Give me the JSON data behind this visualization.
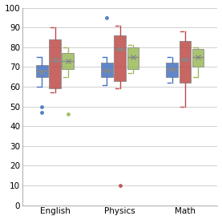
{
  "categories": [
    "English",
    "Physics",
    "Math"
  ],
  "colors": {
    "blue": "#4472C4",
    "red": "#BE4B48",
    "green": "#9BBB59"
  },
  "boxes": {
    "English": {
      "blue": {
        "q1": 65,
        "median": 68,
        "q3": 71,
        "mean": 67.5,
        "whislo": 60,
        "whishi": 75,
        "fliers": [
          50,
          47
        ]
      },
      "red": {
        "q1": 59,
        "median": 73,
        "q3": 84,
        "mean": 74,
        "whislo": 57,
        "whishi": 90,
        "fliers": []
      },
      "green": {
        "q1": 69,
        "median": 73,
        "q3": 77,
        "mean": 73,
        "whislo": 65,
        "whishi": 80,
        "fliers": [
          46
        ]
      }
    },
    "Physics": {
      "blue": {
        "q1": 65,
        "median": 68,
        "q3": 72,
        "mean": 68,
        "whislo": 61,
        "whishi": 75,
        "fliers": [
          95
        ]
      },
      "red": {
        "q1": 63,
        "median": 79,
        "q3": 86,
        "mean": 79,
        "whislo": 59,
        "whishi": 91,
        "fliers": [
          10
        ]
      },
      "green": {
        "q1": 69,
        "median": 75,
        "q3": 80,
        "mean": 75,
        "whislo": 67,
        "whishi": 81,
        "fliers": []
      }
    },
    "Math": {
      "blue": {
        "q1": 65,
        "median": 69,
        "q3": 72,
        "mean": 69,
        "whislo": 62,
        "whishi": 75,
        "fliers": []
      },
      "red": {
        "q1": 62,
        "median": 74,
        "q3": 83,
        "mean": 74,
        "whislo": 50,
        "whishi": 88,
        "fliers": []
      },
      "green": {
        "q1": 70,
        "median": 75,
        "q3": 79,
        "mean": 75,
        "whislo": 65,
        "whishi": 80,
        "fliers": []
      }
    }
  },
  "ylim": [
    0,
    100
  ],
  "yticks": [
    0,
    10,
    20,
    30,
    40,
    50,
    60,
    70,
    80,
    90,
    100
  ],
  "box_width": 0.18,
  "offsets": [
    -0.2,
    0.0,
    0.2
  ],
  "figsize": [
    2.77,
    2.74
  ],
  "dpi": 100
}
